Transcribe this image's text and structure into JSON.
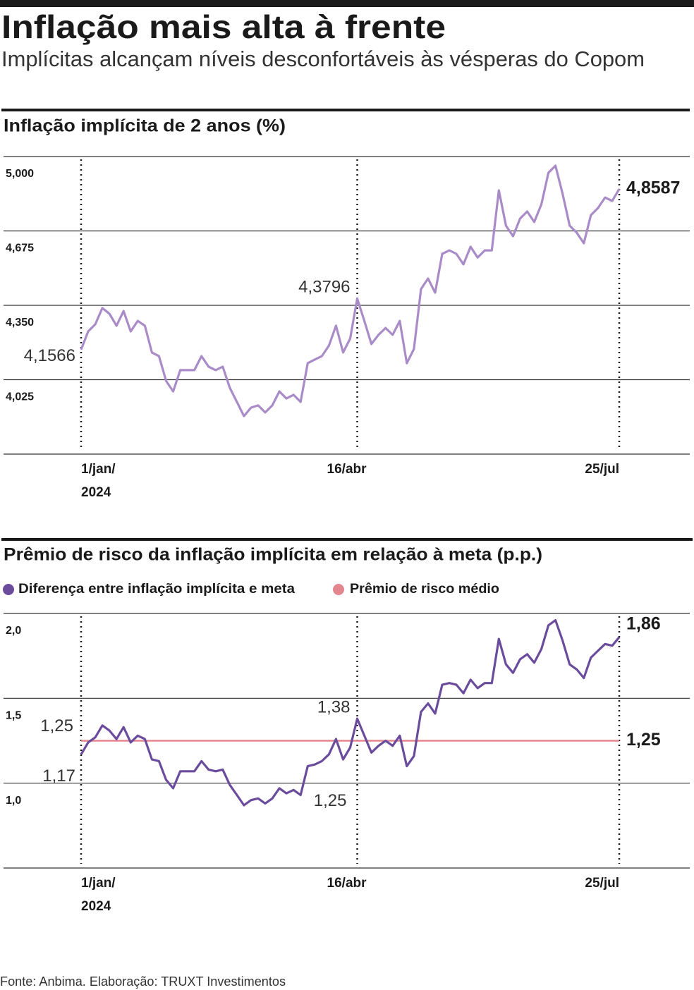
{
  "title": "Inflação mais alta à frente",
  "subtitle": "Implícitas alcançam níveis desconfortáveis às vésperas do Copom",
  "source": "Fonte: Anbima. Elaboração: TRUXT Investimentos",
  "chart_data": [
    {
      "type": "line",
      "title": "Inflação implícita de 2 anos (%)",
      "categories": [
        "1/jan/",
        null,
        null,
        null,
        null,
        null,
        null,
        null,
        null,
        null,
        null,
        null,
        null,
        null,
        null,
        null,
        null,
        null,
        null,
        null,
        null,
        null,
        null,
        null,
        null,
        null,
        null,
        null,
        null,
        null,
        null,
        null,
        null,
        null,
        null,
        null,
        null,
        null,
        null,
        "16/abr",
        null,
        null,
        null,
        null,
        null,
        null,
        null,
        null,
        null,
        null,
        null,
        null,
        null,
        null,
        null,
        null,
        null,
        null,
        null,
        null,
        null,
        null,
        null,
        null,
        null,
        null,
        null,
        null,
        null,
        null,
        null,
        null,
        null,
        null,
        null,
        null,
        "25/jul"
      ],
      "year": "2024",
      "color": "#a98bc8",
      "values": [
        4.1566,
        4.236,
        4.267,
        4.338,
        4.313,
        4.261,
        4.325,
        4.236,
        4.282,
        4.261,
        4.144,
        4.128,
        4.02,
        3.974,
        4.067,
        4.067,
        4.067,
        4.128,
        4.082,
        4.067,
        4.082,
        3.99,
        3.928,
        3.866,
        3.903,
        3.913,
        3.882,
        3.913,
        3.974,
        3.943,
        3.959,
        3.928,
        4.097,
        4.113,
        4.128,
        4.174,
        4.261,
        4.144,
        4.205,
        4.3796,
        4.282,
        4.181,
        4.221,
        4.251,
        4.221,
        4.282,
        4.097,
        4.159,
        4.421,
        4.467,
        4.405,
        4.575,
        4.59,
        4.575,
        4.529,
        4.606,
        4.559,
        4.59,
        4.59,
        4.852,
        4.698,
        4.652,
        4.729,
        4.76,
        4.714,
        4.791,
        4.929,
        4.96,
        4.837,
        4.698,
        4.667,
        4.621,
        4.744,
        4.775,
        4.821,
        4.806,
        4.8587
      ],
      "value_labels": [
        "4,1566",
        null,
        null,
        null,
        null,
        null,
        null,
        null,
        null,
        null,
        null,
        null,
        null,
        null,
        null,
        null,
        null,
        null,
        null,
        null,
        null,
        null,
        null,
        null,
        null,
        null,
        null,
        null,
        null,
        null,
        null,
        null,
        null,
        null,
        null,
        null,
        null,
        null,
        null,
        "4,3796",
        null,
        null,
        null,
        null,
        null,
        null,
        null,
        null,
        null,
        null,
        null,
        null,
        null,
        null,
        null,
        null,
        null,
        null,
        null,
        null,
        null,
        null,
        null,
        null,
        null,
        null,
        null,
        null,
        null,
        null,
        null,
        null,
        null,
        null,
        null,
        null,
        "4,8587"
      ],
      "ylim": [
        3.7,
        5.0
      ],
      "yticks": [
        {
          "value": 5.0,
          "label": "5,000"
        },
        {
          "value": 4.675,
          "label": "4,675"
        },
        {
          "value": 4.35,
          "label": "4,350"
        },
        {
          "value": 4.025,
          "label": "4,025"
        }
      ],
      "grid": true
    },
    {
      "type": "line",
      "title": "Prêmio de risco da inflação implícita em relação à meta (p.p.)",
      "categories": [
        "1/jan/",
        null,
        null,
        null,
        null,
        null,
        null,
        null,
        null,
        null,
        null,
        null,
        null,
        null,
        null,
        null,
        null,
        null,
        null,
        null,
        null,
        null,
        null,
        null,
        null,
        null,
        null,
        null,
        null,
        null,
        null,
        null,
        null,
        null,
        null,
        null,
        null,
        null,
        null,
        "16/abr",
        null,
        null,
        null,
        null,
        null,
        null,
        null,
        null,
        null,
        null,
        null,
        null,
        null,
        null,
        null,
        null,
        null,
        null,
        null,
        null,
        null,
        null,
        null,
        null,
        null,
        null,
        null,
        null,
        null,
        null,
        null,
        null,
        null,
        null,
        null,
        null,
        "25/jul"
      ],
      "year": "2024",
      "series": [
        {
          "name": "Diferença entre inflação implícita e meta",
          "color": "#6b4b9c",
          "values": [
            1.17,
            1.24,
            1.27,
            1.34,
            1.31,
            1.26,
            1.33,
            1.24,
            1.28,
            1.26,
            1.14,
            1.13,
            1.02,
            0.97,
            1.07,
            1.07,
            1.07,
            1.13,
            1.08,
            1.07,
            1.08,
            0.99,
            0.93,
            0.87,
            0.9,
            0.91,
            0.88,
            0.91,
            0.97,
            0.94,
            0.96,
            0.93,
            1.1,
            1.11,
            1.13,
            1.17,
            1.26,
            1.14,
            1.21,
            1.38,
            1.28,
            1.18,
            1.22,
            1.25,
            1.22,
            1.28,
            1.1,
            1.16,
            1.42,
            1.47,
            1.41,
            1.58,
            1.59,
            1.58,
            1.53,
            1.61,
            1.56,
            1.59,
            1.59,
            1.85,
            1.7,
            1.65,
            1.73,
            1.76,
            1.71,
            1.79,
            1.93,
            1.96,
            1.84,
            1.7,
            1.67,
            1.62,
            1.74,
            1.78,
            1.82,
            1.81,
            1.86
          ],
          "value_labels": [
            "1,17",
            null,
            null,
            null,
            null,
            null,
            null,
            null,
            null,
            null,
            null,
            null,
            null,
            null,
            null,
            null,
            null,
            null,
            null,
            null,
            null,
            null,
            null,
            null,
            null,
            null,
            null,
            null,
            null,
            null,
            null,
            null,
            null,
            null,
            null,
            null,
            null,
            null,
            null,
            "1,38",
            null,
            null,
            null,
            null,
            null,
            null,
            null,
            null,
            null,
            null,
            null,
            null,
            null,
            null,
            null,
            null,
            null,
            null,
            null,
            null,
            null,
            null,
            null,
            null,
            null,
            null,
            null,
            null,
            null,
            null,
            null,
            null,
            null,
            null,
            null,
            null,
            "1,86"
          ]
        }
      ],
      "average": {
        "name": "Prêmio de risco médio",
        "color": "#e3868e",
        "value": 1.25,
        "label": "1,25"
      },
      "annotations": [
        "1,25",
        "1,25"
      ],
      "ylim": [
        0.5,
        2.0
      ],
      "yticks": [
        {
          "value": 2.0,
          "label": "2,0"
        },
        {
          "value": 1.5,
          "label": "1,5"
        },
        {
          "value": 1.0,
          "label": "1,0"
        }
      ],
      "grid": true
    }
  ]
}
